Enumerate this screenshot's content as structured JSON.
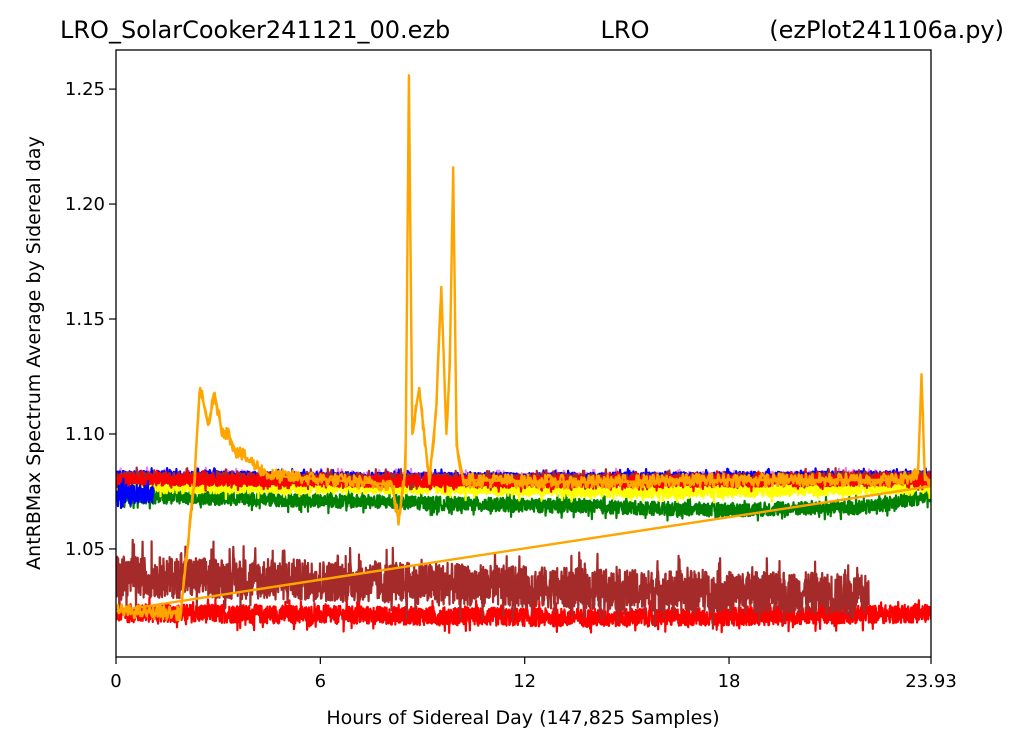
{
  "chart_data": {
    "type": "line",
    "title_left": "LRO_SolarCooker241121_00.ezb",
    "title_center": "LRO",
    "title_right": "(ezPlot241106a.py)",
    "xlabel": "Hours of Sidereal Day  (147,825 Samples)",
    "ylabel": "AntRBMax Spectrum Average by Sidereal day",
    "xlim": [
      0,
      23.93
    ],
    "ylim": [
      1.003,
      1.267
    ],
    "xticks": [
      0,
      6,
      12,
      18,
      23.93
    ],
    "xtick_labels": [
      "0",
      "6",
      "12",
      "18",
      "23.93"
    ],
    "yticks": [
      1.05,
      1.1,
      1.15,
      1.2,
      1.25
    ],
    "ytick_labels": [
      "1.05",
      "1.10",
      "1.15",
      "1.20",
      "1.25"
    ],
    "grid": false,
    "series": [
      {
        "color": "#ff0000",
        "style": "noisy-band",
        "x_range": [
          0,
          23.93
        ],
        "points": [
          [
            0,
            1.022
          ],
          [
            2,
            1.022
          ],
          [
            8,
            1.021
          ],
          [
            14,
            1.02
          ],
          [
            20,
            1.021
          ],
          [
            23.93,
            1.022
          ]
        ],
        "noise": 0.004
      },
      {
        "color": "#a52a2a",
        "style": "noisy-band",
        "x_range": [
          0,
          22.1
        ],
        "points": [
          [
            0,
            1.038
          ],
          [
            4,
            1.037
          ],
          [
            9,
            1.035
          ],
          [
            15,
            1.032
          ],
          [
            20,
            1.031
          ],
          [
            22.1,
            1.03
          ]
        ],
        "noise": 0.009
      },
      {
        "color": "#008000",
        "style": "noisy-band",
        "x_range": [
          0.2,
          23.93
        ],
        "points": [
          [
            0.2,
            1.073
          ],
          [
            6,
            1.071
          ],
          [
            12,
            1.069
          ],
          [
            18,
            1.067
          ],
          [
            22,
            1.068
          ],
          [
            23.93,
            1.073
          ]
        ],
        "noise": 0.003
      },
      {
        "color": "#ffff00",
        "style": "noisy-band",
        "x_range": [
          0,
          23.93
        ],
        "points": [
          [
            0,
            1.077
          ],
          [
            8,
            1.077
          ],
          [
            16,
            1.075
          ],
          [
            23.93,
            1.077
          ]
        ],
        "noise": 0.003
      },
      {
        "color": "#ee82ee",
        "style": "noisy-band",
        "x_range": [
          0,
          23.93
        ],
        "points": [
          [
            0,
            1.082
          ],
          [
            12,
            1.081
          ],
          [
            23.93,
            1.082
          ]
        ],
        "noise": 0.002
      },
      {
        "color": "#0000ff",
        "style": "noisy-band",
        "x_range": [
          0,
          23.93
        ],
        "points": [
          [
            0,
            1.082
          ],
          [
            12,
            1.081
          ],
          [
            23.93,
            1.082
          ]
        ],
        "noise": 0.002
      },
      {
        "color": "#a52a2a",
        "style": "noisy-band",
        "x_range": [
          0,
          23.93
        ],
        "points": [
          [
            0,
            1.081
          ],
          [
            12,
            1.08
          ],
          [
            23.93,
            1.081
          ]
        ],
        "noise": 0.0025
      },
      {
        "color": "#ff0000",
        "style": "noisy-band",
        "x_range": [
          0,
          23.93
        ],
        "points": [
          [
            0,
            1.08
          ],
          [
            12,
            1.079
          ],
          [
            23.93,
            1.08
          ]
        ],
        "noise": 0.0025
      },
      {
        "color": "#ffa500",
        "style": "spiky",
        "x_range": [
          0,
          23.93
        ],
        "points": [
          [
            0,
            1.023
          ],
          [
            1.9,
            1.022
          ],
          [
            2.3,
            1.079
          ],
          [
            2.45,
            1.118
          ],
          [
            2.55,
            1.115
          ],
          [
            2.7,
            1.104
          ],
          [
            2.9,
            1.117
          ],
          [
            3.1,
            1.102
          ],
          [
            3.3,
            1.1
          ],
          [
            3.5,
            1.093
          ],
          [
            4.5,
            1.082
          ],
          [
            8.1,
            1.078
          ],
          [
            8.3,
            1.062
          ],
          [
            8.5,
            1.085
          ],
          [
            8.6,
            1.256
          ],
          [
            8.7,
            1.1
          ],
          [
            8.9,
            1.12
          ],
          [
            9.2,
            1.08
          ],
          [
            9.4,
            1.11
          ],
          [
            9.55,
            1.164
          ],
          [
            9.7,
            1.1
          ],
          [
            9.8,
            1.13
          ],
          [
            9.9,
            1.216
          ],
          [
            10.0,
            1.095
          ],
          [
            10.2,
            1.08
          ],
          [
            14,
            1.079
          ],
          [
            18,
            1.08
          ],
          [
            23,
            1.08
          ],
          [
            23.55,
            1.083
          ],
          [
            23.65,
            1.126
          ],
          [
            23.75,
            1.08
          ],
          [
            23.93,
            1.08
          ]
        ],
        "noise": 0.003
      },
      {
        "color": "#0000ff",
        "style": "noisy-band",
        "x_range": [
          0,
          1.1
        ],
        "points": [
          [
            0,
            1.074
          ],
          [
            1.1,
            1.074
          ]
        ],
        "noise": 0.004
      }
    ]
  }
}
